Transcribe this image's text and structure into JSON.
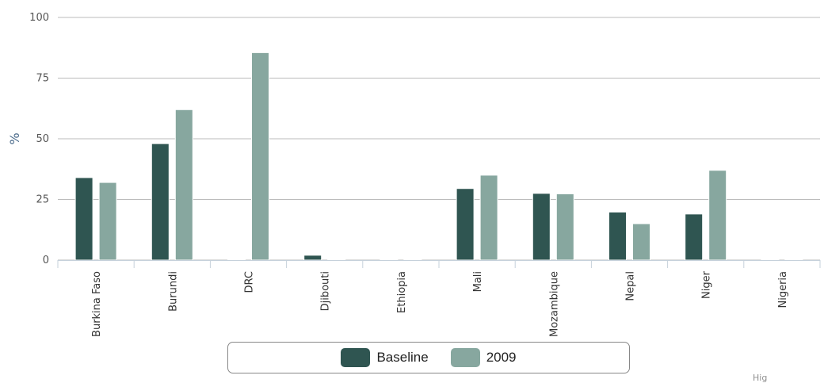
{
  "colors": {
    "baseline": "#2f5551",
    "y2009": "#87a79f",
    "grid": "#bbbbbb",
    "axis": "#c6d1db"
  },
  "chart_data": {
    "type": "bar",
    "ylabel": "%",
    "ylim": [
      0,
      100
    ],
    "yticks": [
      0,
      25,
      50,
      75,
      100
    ],
    "grid": true,
    "legend_position": "bottom",
    "categories": [
      "Burkina Faso",
      "Burundi",
      "DRC",
      "Djibouti",
      "Ethiopia",
      "Mali",
      "Mozambique",
      "Nepal",
      "Niger",
      "Nigeria"
    ],
    "series": [
      {
        "name": "Baseline",
        "values": [
          34,
          48,
          0,
          2,
          0,
          29.5,
          27.5,
          19.8,
          19,
          0
        ]
      },
      {
        "name": "2009",
        "values": [
          32,
          62,
          85.5,
          0,
          0,
          35,
          27.3,
          15,
          37,
          0
        ]
      }
    ]
  },
  "credit": "Hig"
}
